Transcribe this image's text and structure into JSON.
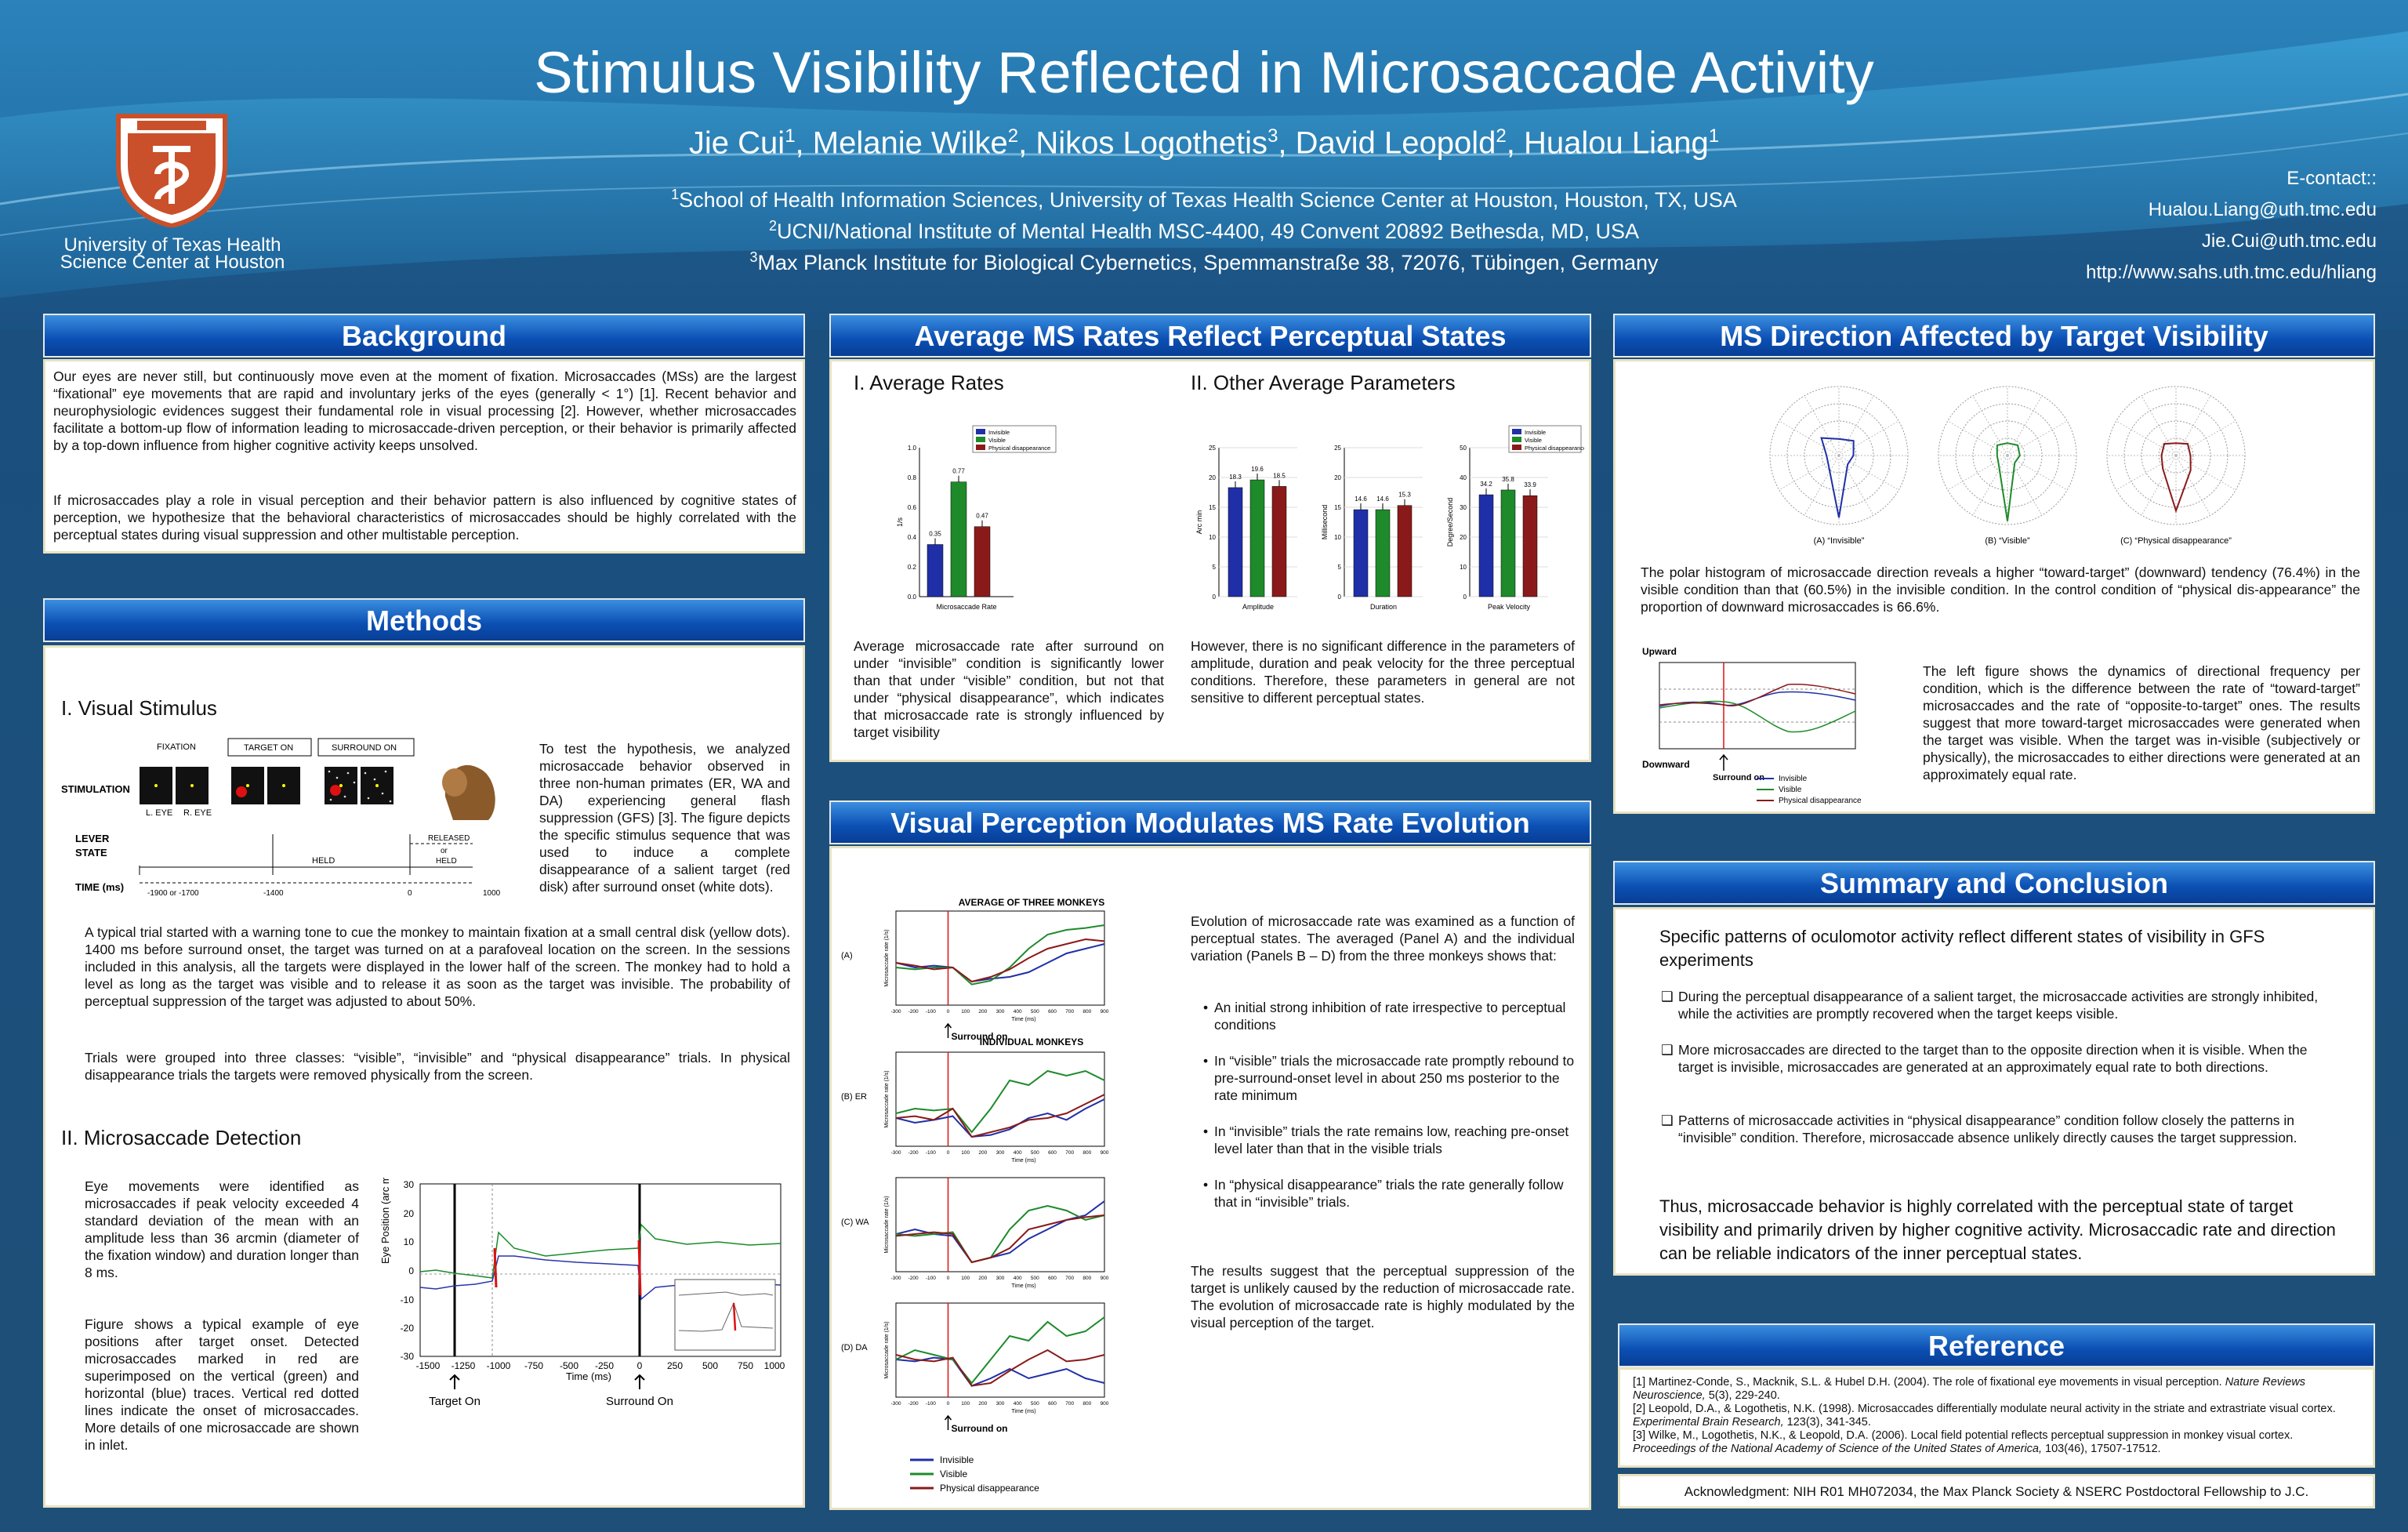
{
  "header": {
    "title": "Stimulus Visibility Reflected in Microsaccade Activity",
    "authors": [
      "Jie Cui",
      "1",
      ", Melanie Wilke",
      "2",
      ", Nikos Logothetis",
      "3",
      ", David Leopold",
      "2",
      ", Hualou Liang",
      "1"
    ],
    "affiliations": [
      {
        "sup": "1",
        "text": "School of Health Information Sciences, University of Texas Health Science Center at Houston, Houston, TX, USA"
      },
      {
        "sup": "2",
        "text": "UCNI/National Institute of Mental Health MSC-4400, 49 Convent 20892 Bethesda, MD, USA"
      },
      {
        "sup": "3",
        "text": "Max Planck Institute for Biological Cybernetics, Spemmanstraße 38, 72076, Tübingen, Germany"
      }
    ],
    "institution": [
      "University of Texas Health",
      "Science Center at Houston"
    ],
    "contact": [
      "E-contact::",
      "Hualou.Liang@uth.tmc.edu",
      "Jie.Cui@uth.tmc.edu",
      "http://www.sahs.uth.tmc.edu/hliang"
    ]
  },
  "background": {
    "heading": "Background",
    "p1": "Our eyes are never still, but continuously move even at the moment of fixation. Microsaccades (MSs) are the largest “fixational” eye movements that are rapid and involuntary jerks of the eyes (generally < 1°) [1]. Recent behavior and neurophysiologic evidences suggest their fundamental role in visual processing [2]. However, whether microsaccades facilitate a bottom-up flow of information leading to microsaccade-driven perception, or their behavior is primarily affected by a top-down influence from higher cognitive activity keeps unsolved.",
    "p2": "If microsaccades play a role in visual perception and their behavior pattern is also influenced by cognitive states of perception, we hypothesize that the behavioral characteristics of microsaccades should be highly correlated with the perceptual states during visual suppression and other multistable perception."
  },
  "methods": {
    "heading": "Methods",
    "s1": "I. Visual Stimulus",
    "fig_labels": {
      "fixation": "FIXATION",
      "target_on": "TARGET ON",
      "surround_on": "SURROUND ON",
      "stimulation": "STIMULATION",
      "leye": "L. EYE",
      "reye": "R. EYE",
      "lever": "LEVER",
      "state": "STATE",
      "released": "RELEASED",
      "or": "or",
      "held": "HELD",
      "held2": "HELD",
      "time": "TIME (ms)",
      "t1": "-1900 or -1700",
      "t2": "-1400",
      "t3": "0",
      "t4": "1000"
    },
    "p1": "To test the hypothesis, we analyzed microsaccade behavior observed in three non-human primates (ER, WA and DA) experiencing general flash suppression (GFS) [3]. The figure depicts the specific stimulus sequence that was used to induce a complete disappearance of a salient target (red disk) after surround onset (white dots).",
    "p2": "A typical trial started with a warning tone to cue the monkey to maintain fixation at a small central disk (yellow dots). 1400 ms before surround onset, the target was turned on at a parafoveal location on the screen. In the sessions included in this analysis, all the targets were displayed in the lower half of the screen. The monkey had to hold a level as long as the target was visible and to release it as soon as the target was invisible. The probability of perceptual suppression of the target was adjusted to about 50%.",
    "p3": "Trials were grouped into three classes: “visible”, “invisible” and “physical disappearance” trials. In physical disappearance trials the targets were removed physically from the screen.",
    "s2": "II. Microsaccade Detection",
    "p4": "Eye movements were identified as microsaccades if peak velocity exceeded 4 standard deviation of the mean with an amplitude less than 36 arcmin (diameter of the fixation window) and duration longer than 8 ms.",
    "p5": "Figure shows a typical example of eye positions after target onset. Detected microsaccades marked in red are superimposed on the vertical (green) and horizontal (blue) traces. Vertical red dotted lines indicate the onset of microsaccades. More details of one microsaccade are shown in inlet.",
    "eye_fig": {
      "ylabel": "Eye Position (arc min)",
      "xlabel": "Time (ms)",
      "yticks": [
        "30",
        "20",
        "10",
        "0",
        "-10",
        "-20",
        "-30"
      ],
      "xticks": [
        "-1500",
        "-1250",
        "-1000",
        "-750",
        "-500",
        "-250",
        "0",
        "250",
        "500",
        "750",
        "1000"
      ],
      "target_on": "Target On",
      "surround_on": "Surround On"
    }
  },
  "avg_rates": {
    "heading": "Average MS Rates Reflect Perceptual States",
    "s1": "I. Average Rates",
    "s2": "II. Other Average Parameters",
    "legend": [
      "Invisible",
      "Visible",
      "Physical disappearance"
    ],
    "colors": {
      "invisible": "#1f2fa8",
      "visible": "#1e8a2a",
      "physical": "#8a1a1a"
    },
    "p1": "Average microsaccade rate after surround on under “invisible” condition is significantly lower than that under “visible” condition, but not that under “physical disappearance”, which indicates that microsaccade rate is strongly influenced by target visibility",
    "p2": "However, there is no significant difference in the parameters of amplitude, duration and peak velocity for the three perceptual conditions. Therefore, these parameters in general are not sensitive to different perceptual states."
  },
  "chart_data": [
    {
      "type": "bar",
      "categories": [
        "Microsaccade Rate"
      ],
      "series": [
        {
          "name": "Invisible",
          "values": [
            0.35
          ]
        },
        {
          "name": "Visible",
          "values": [
            0.77
          ]
        },
        {
          "name": "Physical disappearance",
          "values": [
            0.47
          ]
        }
      ],
      "ylabel": "1/s",
      "ylim": [
        0,
        1.0
      ],
      "yticks": [
        "0.0",
        "0.2",
        "0.4",
        "0.6",
        "0.8",
        "1.0"
      ],
      "value_labels": [
        "0.35",
        "0.77",
        "0.47"
      ]
    },
    {
      "type": "bar",
      "categories": [
        "Amplitude"
      ],
      "series": [
        {
          "name": "Invisible",
          "values": [
            18.3
          ]
        },
        {
          "name": "Visible",
          "values": [
            19.6
          ]
        },
        {
          "name": "Physical disappearance",
          "values": [
            18.5
          ]
        }
      ],
      "ylabel": "Arc min",
      "ylim": [
        0,
        25
      ],
      "yticks": [
        "0",
        "5",
        "10",
        "15",
        "20",
        "25"
      ],
      "value_labels": [
        "18.3",
        "19.6",
        "18.5"
      ]
    },
    {
      "type": "bar",
      "categories": [
        "Duration"
      ],
      "series": [
        {
          "name": "Invisible",
          "values": [
            14.6
          ]
        },
        {
          "name": "Visible",
          "values": [
            14.6
          ]
        },
        {
          "name": "Physical disappearance",
          "values": [
            15.3
          ]
        }
      ],
      "ylabel": "Millisecond",
      "ylim": [
        0,
        25
      ],
      "yticks": [
        "0",
        "5",
        "10",
        "15",
        "20",
        "25"
      ],
      "value_labels": [
        "14.6",
        "14.6",
        "15.3"
      ]
    },
    {
      "type": "bar",
      "categories": [
        "Peak Velocity"
      ],
      "series": [
        {
          "name": "Invisible",
          "values": [
            34.2
          ]
        },
        {
          "name": "Visible",
          "values": [
            35.8
          ]
        },
        {
          "name": "Physical disappearance",
          "values": [
            33.9
          ]
        }
      ],
      "ylabel": "Degree/Second",
      "ylim": [
        0,
        50
      ],
      "yticks": [
        "0",
        "10",
        "20",
        "30",
        "40",
        "50"
      ],
      "value_labels": [
        "34.2",
        "35.8",
        "33.9"
      ]
    }
  ],
  "vp": {
    "heading": "Visual Perception Modulates MS Rate Evolution",
    "fig_title1": "AVERAGE OF THREE MONKEYS",
    "fig_title2": "INDIVIDUAL MONKEYS",
    "panels": [
      "(A)",
      "(B) ER",
      "(C) WA",
      "(D) DA"
    ],
    "surround_on": "Surround on",
    "ylabel": "Microsaccade rate (1/s)",
    "xlabel": "Time (ms)",
    "xticks": [
      "-300",
      "-200",
      "-100",
      "0",
      "100",
      "200",
      "300",
      "400",
      "500",
      "600",
      "700",
      "800",
      "900"
    ],
    "legend": [
      "Invisible",
      "Visible",
      "Physical disappearance"
    ],
    "p1": "Evolution of microsaccade rate was examined as a function of perceptual states. The averaged (Panel A) and the individual variation (Panels B – D) from the three monkeys shows that:",
    "bullets": [
      "An initial strong inhibition of rate irrespective to perceptual conditions",
      "In “visible” trials the microsaccade rate promptly rebound to pre-surround-onset level in about 250 ms posterior to the rate minimum",
      "In “invisible” trials the rate remains low, reaching pre-onset level later than that in the visible trials",
      "In “physical disappearance” trials the rate generally follow that in “invisible” trials."
    ],
    "p2": "The results suggest that the perceptual suppression of the target is unlikely caused by the reduction of microsaccade rate. The evolution of microsaccade rate is highly modulated by the visual perception of the target."
  },
  "direction": {
    "heading": "MS Direction Affected by Target Visibility",
    "polar_labels": [
      "(A) “Invisible”",
      "(B) “Visible”",
      "(C) “Physical disappearance”"
    ],
    "p1": "The polar histogram of microsaccade direction reveals a higher “toward-target” (downward) tendency (76.4%) in the visible condition than that (60.5%) in the invisible condition. In the control condition of “physical dis-appearance” the proportion of downward microsaccades is 66.6%.",
    "p2": "The left figure shows the dynamics of directional frequency per condition, which is the difference between the rate of “toward-target” microsaccades and the rate of “opposite-to-target” ones. The results suggest that more toward-target microsaccades were generated when the target was visible. When the target was in-visible (subjectively or physically), the microsaccades to either directions were generated at an approximately equal rate.",
    "upward": "Upward",
    "downward": "Downward",
    "surround_on": "Surround on",
    "legend": [
      "Invisible",
      "Visible",
      "Physical disappearance"
    ]
  },
  "summary": {
    "heading": "Summary and Conclusion",
    "intro": "Specific patterns of oculomotor activity reflect different states of visibility in GFS experiments",
    "items": [
      "During the perceptual disappearance of a salient target, the microsaccade activities are strongly inhibited, while the activities are promptly recovered when the target keeps visible.",
      "More microsaccades are directed to the target than to the opposite direction when it is visible. When the target is invisible, microsaccades are generated at an approximately equal rate to both directions.",
      "Patterns of microsaccade activities in “physical disappearance” condition follow closely the patterns in “invisible” condition. Therefore, microsaccade absence unlikely directly causes the target suppression."
    ],
    "conclusion": "Thus, microsaccade behavior is highly correlated with the perceptual state of target visibility and primarily driven by higher cognitive activity. Microsaccadic rate and direction can be reliable indicators of the inner perceptual states."
  },
  "reference": {
    "heading": "Reference",
    "items": [
      {
        "a": "[1] Martinez-Conde, S., Macknik, S.L. & Hubel D.H. (2004). The role of fixational eye movements in visual perception. ",
        "i": "Nature Reviews Neuroscience,",
        "b": " 5(3), 229-240."
      },
      {
        "a": "[2] Leopold, D.A., & Logothetis, N.K. (1998). Microsaccades differentially modulate neural activity in the striate and extrastriate visual cortex. ",
        "i": "Experimental Brain Research,",
        "b": " 123(3), 341-345."
      },
      {
        "a": "[3] Wilke, M., Logothetis, N.K., & Leopold, D.A. (2006). Local field potential reflects perceptual suppression in monkey visual cortex. ",
        "i": "Proceedings of the National Academy of Science of the United States of America,",
        "b": " 103(46), 17507-17512."
      }
    ],
    "ack": "Acknowledgment: NIH R01 MH072034, the Max Planck Society & NSERC Postdoctoral Fellowship to J.C."
  }
}
